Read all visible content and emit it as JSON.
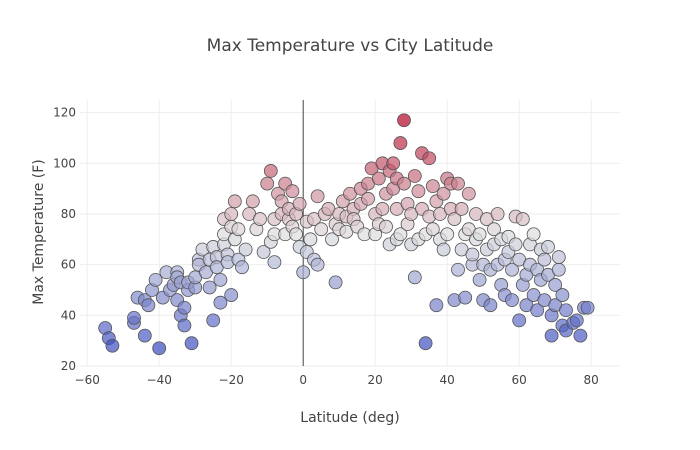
{
  "chart_data": {
    "type": "scatter",
    "title": "Max Temperature vs City Latitude",
    "xlabel": "Latitude (deg)",
    "ylabel": "Max Temperature (F)",
    "xlim": [
      -62,
      88
    ],
    "ylim": [
      20,
      125
    ],
    "x_ticks": [
      -60,
      -40,
      -20,
      0,
      20,
      40,
      60,
      80
    ],
    "y_ticks": [
      20,
      40,
      60,
      80,
      100,
      120
    ],
    "grid": true,
    "legend": "none",
    "colorscale": [
      "#3b4cc0",
      "#dddddd",
      "#b40426"
    ],
    "color_range": [
      27,
      117
    ],
    "marker_opacity": 0.7,
    "points": [
      [
        -55,
        35
      ],
      [
        -54,
        31
      ],
      [
        -53,
        28
      ],
      [
        -47,
        37
      ],
      [
        -47,
        39
      ],
      [
        -46,
        47
      ],
      [
        -44,
        32
      ],
      [
        -44,
        46
      ],
      [
        -43,
        44
      ],
      [
        -42,
        50
      ],
      [
        -41,
        54
      ],
      [
        -40,
        27
      ],
      [
        -39,
        47
      ],
      [
        -38,
        57
      ],
      [
        -37,
        50
      ],
      [
        -36,
        52
      ],
      [
        -35,
        57
      ],
      [
        -35,
        55
      ],
      [
        -35,
        46
      ],
      [
        -34,
        53
      ],
      [
        -34,
        40
      ],
      [
        -33,
        36
      ],
      [
        -33,
        43
      ],
      [
        -32,
        50
      ],
      [
        -32,
        53
      ],
      [
        -31,
        29
      ],
      [
        -30,
        51
      ],
      [
        -30,
        55
      ],
      [
        -29,
        62
      ],
      [
        -29,
        60
      ],
      [
        -28,
        66
      ],
      [
        -27,
        57
      ],
      [
        -26,
        51
      ],
      [
        -26,
        62
      ],
      [
        -25,
        67
      ],
      [
        -25,
        38
      ],
      [
        -24,
        63
      ],
      [
        -24,
        59
      ],
      [
        -23,
        54
      ],
      [
        -23,
        45
      ],
      [
        -22,
        68
      ],
      [
        -22,
        72
      ],
      [
        -22,
        78
      ],
      [
        -21,
        64
      ],
      [
        -21,
        61
      ],
      [
        -20,
        48
      ],
      [
        -20,
        75
      ],
      [
        -20,
        80
      ],
      [
        -19,
        85
      ],
      [
        -19,
        70
      ],
      [
        -18,
        74
      ],
      [
        -18,
        62
      ],
      [
        -17,
        59
      ],
      [
        -16,
        66
      ],
      [
        -15,
        80
      ],
      [
        -14,
        85
      ],
      [
        -13,
        74
      ],
      [
        -12,
        78
      ],
      [
        -11,
        65
      ],
      [
        -10,
        92
      ],
      [
        -9,
        69
      ],
      [
        -9,
        97
      ],
      [
        -8,
        61
      ],
      [
        -8,
        72
      ],
      [
        -8,
        78
      ],
      [
        -7,
        88
      ],
      [
        -6,
        80
      ],
      [
        -6,
        85
      ],
      [
        -5,
        72
      ],
      [
        -5,
        92
      ],
      [
        -4,
        78
      ],
      [
        -4,
        82
      ],
      [
        -3,
        89
      ],
      [
        -3,
        75
      ],
      [
        -2,
        80
      ],
      [
        -2,
        72
      ],
      [
        -1,
        67
      ],
      [
        -1,
        84
      ],
      [
        0,
        57
      ],
      [
        1,
        65
      ],
      [
        1,
        77
      ],
      [
        2,
        70
      ],
      [
        3,
        78
      ],
      [
        3,
        62
      ],
      [
        4,
        87
      ],
      [
        4,
        60
      ],
      [
        5,
        74
      ],
      [
        6,
        80
      ],
      [
        7,
        82
      ],
      [
        8,
        70
      ],
      [
        9,
        53
      ],
      [
        9,
        76
      ],
      [
        10,
        74
      ],
      [
        10,
        80
      ],
      [
        11,
        85
      ],
      [
        12,
        79
      ],
      [
        12,
        73
      ],
      [
        13,
        88
      ],
      [
        14,
        82
      ],
      [
        14,
        78
      ],
      [
        15,
        75
      ],
      [
        16,
        84
      ],
      [
        16,
        90
      ],
      [
        17,
        72
      ],
      [
        18,
        86
      ],
      [
        18,
        92
      ],
      [
        19,
        98
      ],
      [
        20,
        80
      ],
      [
        20,
        72
      ],
      [
        21,
        76
      ],
      [
        21,
        94
      ],
      [
        22,
        100
      ],
      [
        22,
        82
      ],
      [
        23,
        75
      ],
      [
        23,
        88
      ],
      [
        24,
        97
      ],
      [
        24,
        68
      ],
      [
        25,
        100
      ],
      [
        25,
        90
      ],
      [
        26,
        70
      ],
      [
        26,
        82
      ],
      [
        26,
        94
      ],
      [
        27,
        108
      ],
      [
        27,
        72
      ],
      [
        28,
        117
      ],
      [
        28,
        92
      ],
      [
        29,
        76
      ],
      [
        29,
        84
      ],
      [
        30,
        68
      ],
      [
        30,
        80
      ],
      [
        31,
        95
      ],
      [
        31,
        55
      ],
      [
        32,
        70
      ],
      [
        32,
        89
      ],
      [
        33,
        82
      ],
      [
        33,
        104
      ],
      [
        34,
        29
      ],
      [
        34,
        72
      ],
      [
        35,
        79
      ],
      [
        35,
        102
      ],
      [
        36,
        74
      ],
      [
        36,
        91
      ],
      [
        37,
        85
      ],
      [
        37,
        44
      ],
      [
        38,
        70
      ],
      [
        38,
        80
      ],
      [
        39,
        88
      ],
      [
        39,
        66
      ],
      [
        40,
        94
      ],
      [
        40,
        72
      ],
      [
        41,
        92
      ],
      [
        41,
        82
      ],
      [
        42,
        78
      ],
      [
        42,
        46
      ],
      [
        43,
        58
      ],
      [
        43,
        92
      ],
      [
        44,
        66
      ],
      [
        44,
        82
      ],
      [
        45,
        72
      ],
      [
        45,
        47
      ],
      [
        46,
        74
      ],
      [
        46,
        88
      ],
      [
        47,
        60
      ],
      [
        47,
        64
      ],
      [
        48,
        80
      ],
      [
        48,
        70
      ],
      [
        49,
        54
      ],
      [
        49,
        72
      ],
      [
        50,
        60
      ],
      [
        50,
        46
      ],
      [
        51,
        66
      ],
      [
        51,
        78
      ],
      [
        52,
        44
      ],
      [
        52,
        58
      ],
      [
        53,
        74
      ],
      [
        53,
        68
      ],
      [
        54,
        80
      ],
      [
        54,
        60
      ],
      [
        55,
        52
      ],
      [
        55,
        70
      ],
      [
        56,
        48
      ],
      [
        56,
        62
      ],
      [
        57,
        65
      ],
      [
        57,
        71
      ],
      [
        58,
        58
      ],
      [
        58,
        46
      ],
      [
        59,
        79
      ],
      [
        59,
        68
      ],
      [
        60,
        62
      ],
      [
        60,
        38
      ],
      [
        61,
        52
      ],
      [
        61,
        78
      ],
      [
        62,
        44
      ],
      [
        62,
        56
      ],
      [
        63,
        68
      ],
      [
        63,
        60
      ],
      [
        64,
        72
      ],
      [
        64,
        48
      ],
      [
        65,
        58
      ],
      [
        65,
        42
      ],
      [
        66,
        66
      ],
      [
        66,
        54
      ],
      [
        67,
        46
      ],
      [
        67,
        62
      ],
      [
        68,
        56
      ],
      [
        68,
        67
      ],
      [
        69,
        40
      ],
      [
        69,
        32
      ],
      [
        70,
        44
      ],
      [
        70,
        52
      ],
      [
        71,
        58
      ],
      [
        71,
        63
      ],
      [
        72,
        48
      ],
      [
        72,
        36
      ],
      [
        73,
        42
      ],
      [
        73,
        34
      ],
      [
        75,
        37
      ],
      [
        76,
        38
      ],
      [
        77,
        32
      ],
      [
        78,
        43
      ],
      [
        79,
        43
      ]
    ]
  }
}
